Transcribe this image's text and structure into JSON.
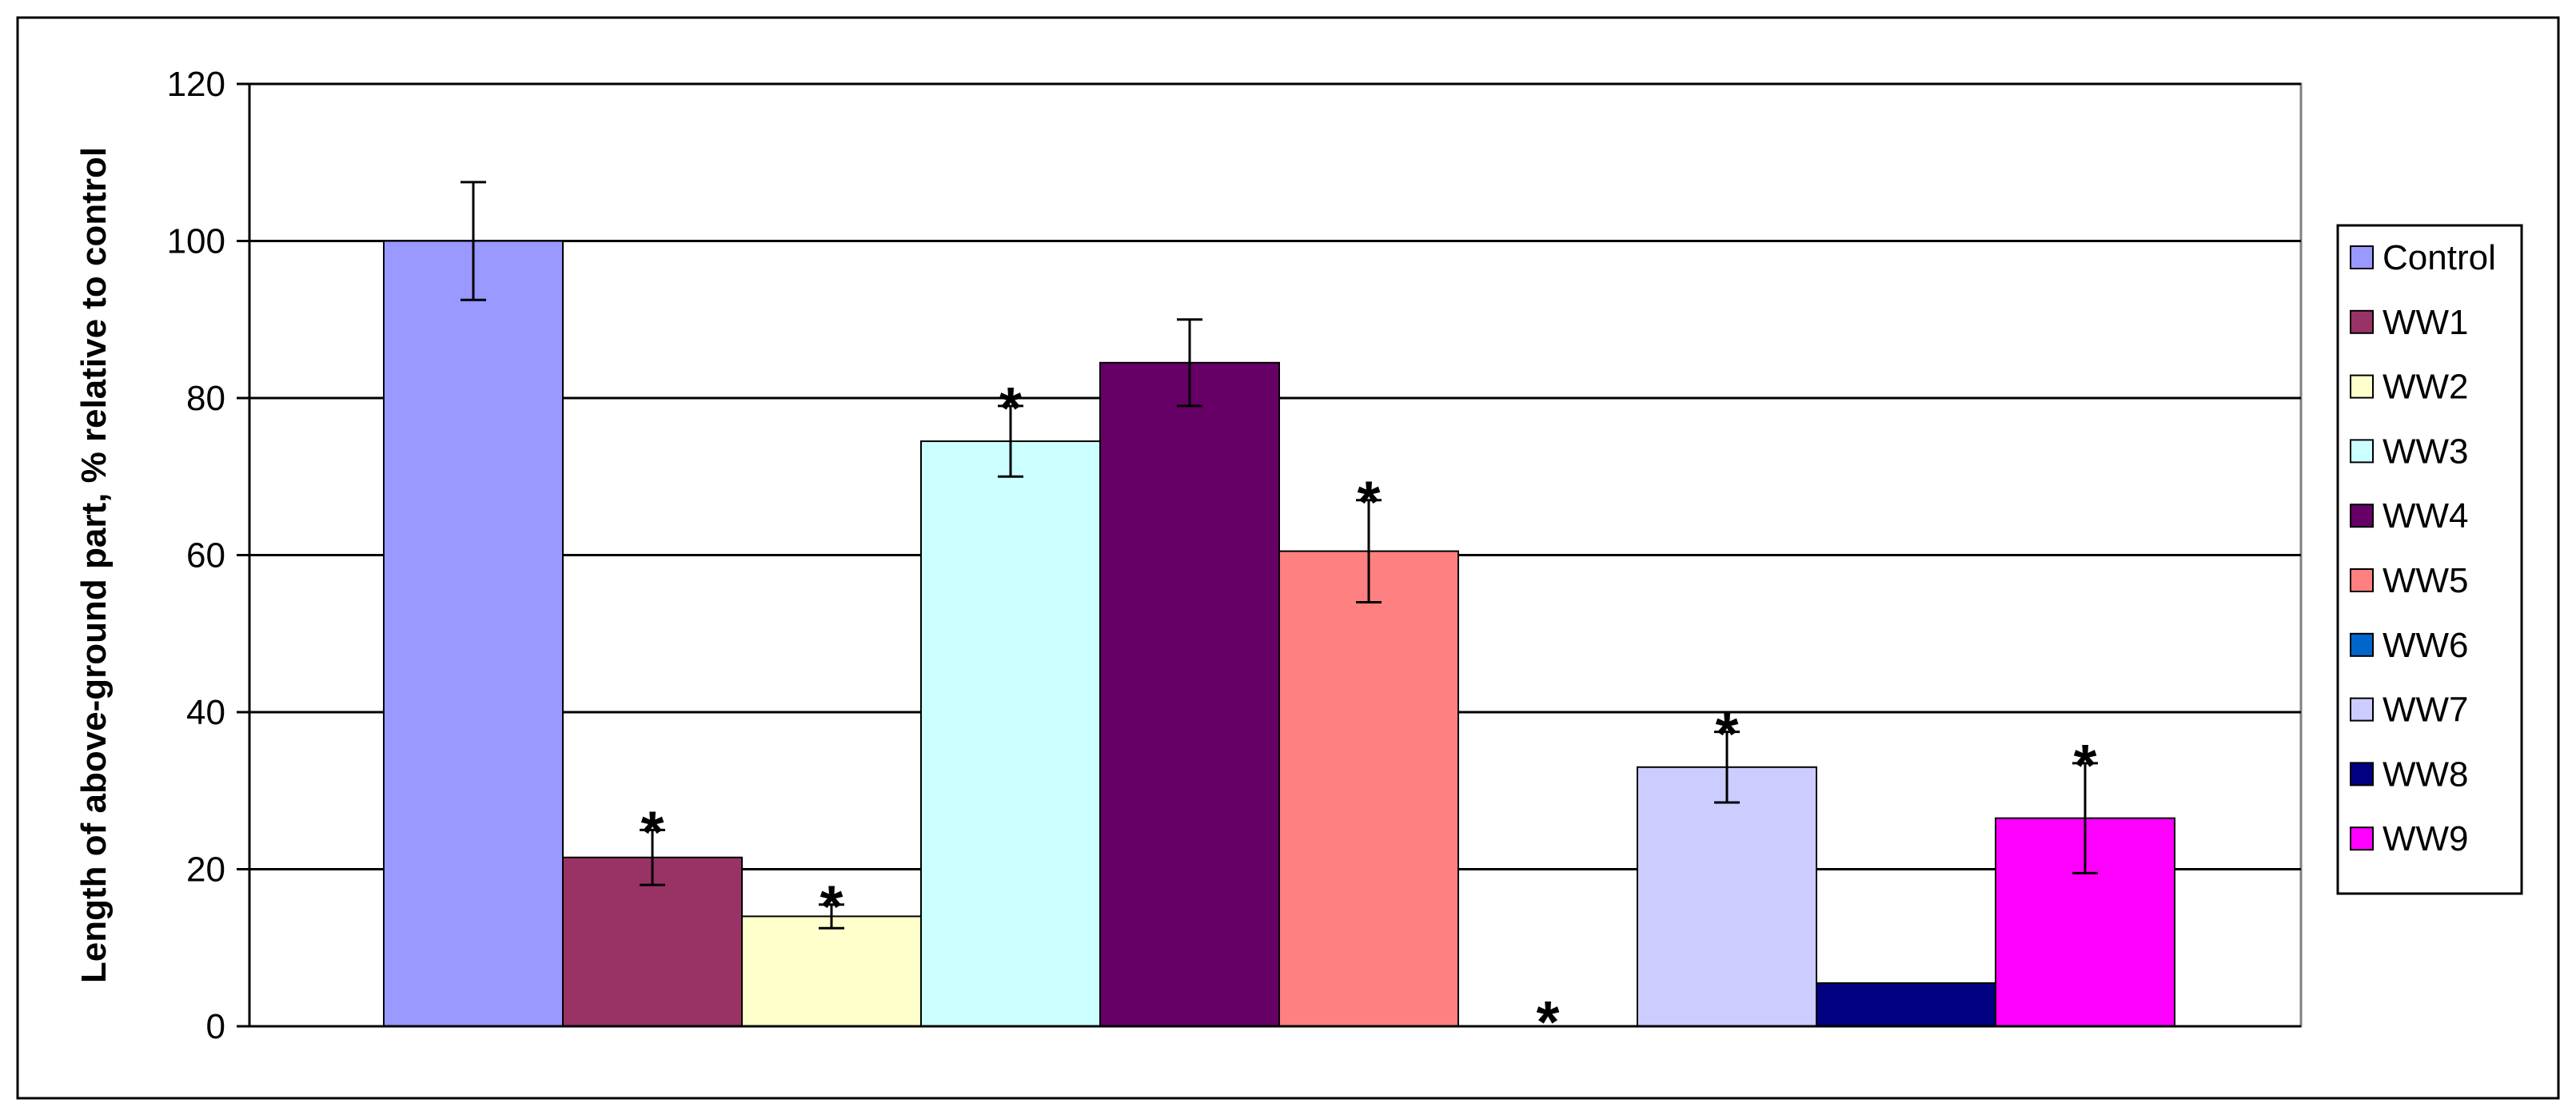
{
  "chart_data": {
    "type": "bar",
    "ylabel": "Length of above-ground part, % relative to control",
    "xlabel": "",
    "ylim": [
      0,
      120
    ],
    "yticks": [
      0,
      20,
      40,
      60,
      80,
      100,
      120
    ],
    "grid": "horizontal",
    "legend_position": "right",
    "series": [
      {
        "name": "Control",
        "value": 100,
        "error": 7.5,
        "significant": false,
        "color": "#9999ff"
      },
      {
        "name": "WW1",
        "value": 21.5,
        "error": 3.5,
        "significant": true,
        "color": "#993366"
      },
      {
        "name": "WW2",
        "value": 14,
        "error": 1.5,
        "significant": true,
        "color": "#ffffcc"
      },
      {
        "name": "WW3",
        "value": 74.5,
        "error": 4.5,
        "significant": true,
        "color": "#ccffff"
      },
      {
        "name": "WW4",
        "value": 84.5,
        "error": 5.5,
        "significant": false,
        "color": "#660066"
      },
      {
        "name": "WW5",
        "value": 60.5,
        "error": 6.5,
        "significant": true,
        "color": "#ff8080"
      },
      {
        "name": "WW6",
        "value": 0,
        "error": 0,
        "significant": true,
        "color": "#0066cc"
      },
      {
        "name": "WW7",
        "value": 33,
        "error": 4.5,
        "significant": true,
        "color": "#ccccff"
      },
      {
        "name": "WW8",
        "value": 5.5,
        "error": 0,
        "significant": false,
        "color": "#000080"
      },
      {
        "name": "WW9",
        "value": 26.5,
        "error": 7,
        "significant": true,
        "color": "#ff00ff"
      }
    ],
    "significance_marker": "*"
  }
}
